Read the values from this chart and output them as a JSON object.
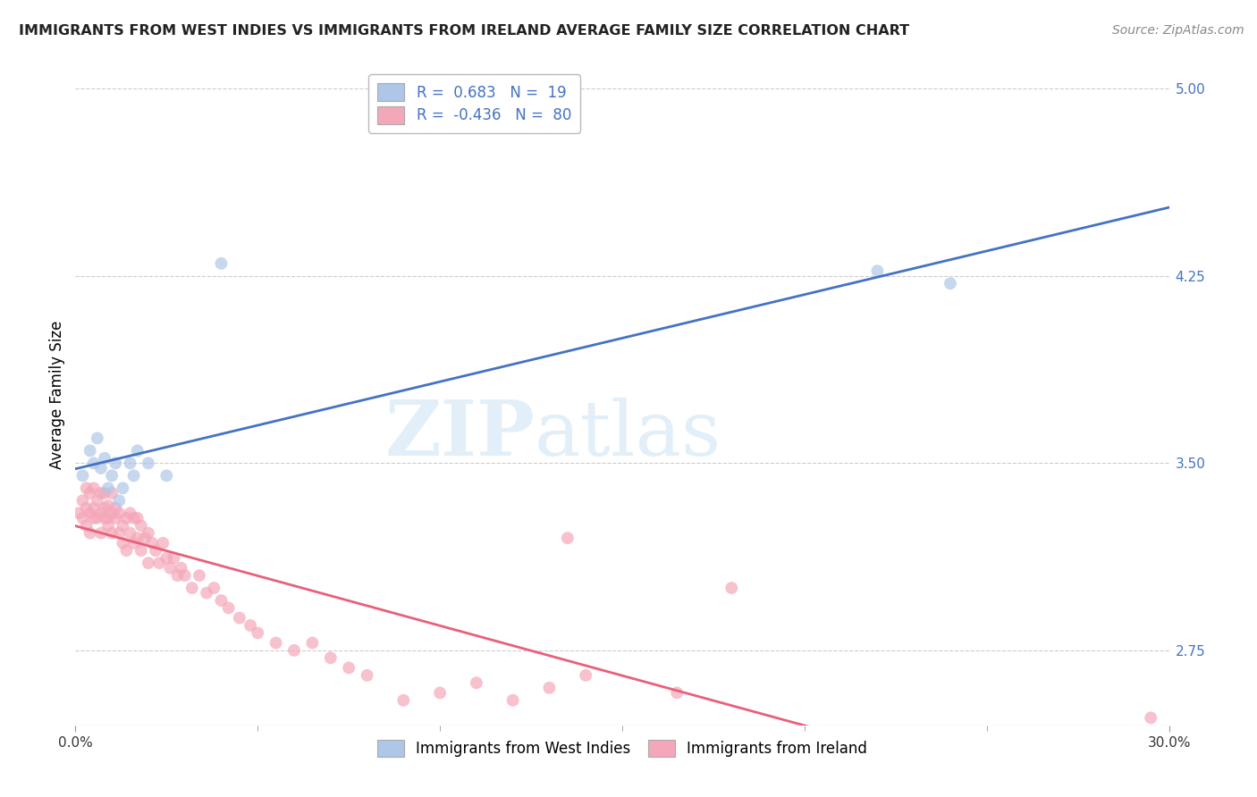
{
  "title": "IMMIGRANTS FROM WEST INDIES VS IMMIGRANTS FROM IRELAND AVERAGE FAMILY SIZE CORRELATION CHART",
  "source": "Source: ZipAtlas.com",
  "ylabel": "Average Family Size",
  "y_ticks": [
    2.75,
    3.5,
    4.25,
    5.0
  ],
  "y_ticks_labels": [
    "2.75",
    "3.50",
    "4.25",
    "5.00"
  ],
  "x_min": 0.0,
  "x_max": 0.3,
  "y_min": 2.45,
  "y_max": 5.1,
  "watermark_left": "ZIP",
  "watermark_right": "atlas",
  "legend_R1": "0.683",
  "legend_N1": "19",
  "legend_R2": "-0.436",
  "legend_N2": "80",
  "series1_name": "Immigrants from West Indies",
  "series2_name": "Immigrants from Ireland",
  "series1_color": "#aec6e8",
  "series2_color": "#f4a7b9",
  "series1_line_color": "#4472c4",
  "series2_line_color": "#e8607a",
  "title_color": "#222222",
  "source_color": "#888888",
  "tick_color_y": "#4472c4",
  "tick_color_x": "#333333",
  "grid_color": "#cccccc",
  "series1_x": [
    0.002,
    0.004,
    0.005,
    0.006,
    0.007,
    0.008,
    0.009,
    0.01,
    0.011,
    0.012,
    0.013,
    0.015,
    0.016,
    0.017,
    0.02,
    0.025,
    0.04,
    0.22,
    0.24
  ],
  "series1_y": [
    3.45,
    3.55,
    3.5,
    3.6,
    3.48,
    3.52,
    3.4,
    3.45,
    3.5,
    3.35,
    3.4,
    3.5,
    3.45,
    3.55,
    3.5,
    3.45,
    4.3,
    4.27,
    4.22
  ],
  "series2_x": [
    0.001,
    0.002,
    0.002,
    0.003,
    0.003,
    0.003,
    0.004,
    0.004,
    0.004,
    0.005,
    0.005,
    0.005,
    0.006,
    0.006,
    0.007,
    0.007,
    0.007,
    0.008,
    0.008,
    0.008,
    0.009,
    0.009,
    0.009,
    0.01,
    0.01,
    0.01,
    0.011,
    0.011,
    0.012,
    0.012,
    0.013,
    0.013,
    0.014,
    0.014,
    0.015,
    0.015,
    0.016,
    0.016,
    0.017,
    0.017,
    0.018,
    0.018,
    0.019,
    0.02,
    0.02,
    0.021,
    0.022,
    0.023,
    0.024,
    0.025,
    0.026,
    0.027,
    0.028,
    0.029,
    0.03,
    0.032,
    0.034,
    0.036,
    0.038,
    0.04,
    0.042,
    0.045,
    0.048,
    0.05,
    0.055,
    0.06,
    0.065,
    0.07,
    0.075,
    0.08,
    0.09,
    0.1,
    0.11,
    0.12,
    0.13,
    0.135,
    0.14,
    0.165,
    0.18,
    0.295
  ],
  "series2_y": [
    3.3,
    3.35,
    3.28,
    3.32,
    3.4,
    3.25,
    3.3,
    3.38,
    3.22,
    3.32,
    3.28,
    3.4,
    3.35,
    3.28,
    3.3,
    3.38,
    3.22,
    3.32,
    3.28,
    3.38,
    3.25,
    3.33,
    3.28,
    3.3,
    3.22,
    3.38,
    3.28,
    3.32,
    3.3,
    3.22,
    3.25,
    3.18,
    3.28,
    3.15,
    3.22,
    3.3,
    3.18,
    3.28,
    3.2,
    3.28,
    3.25,
    3.15,
    3.2,
    3.22,
    3.1,
    3.18,
    3.15,
    3.1,
    3.18,
    3.12,
    3.08,
    3.12,
    3.05,
    3.08,
    3.05,
    3.0,
    3.05,
    2.98,
    3.0,
    2.95,
    2.92,
    2.88,
    2.85,
    2.82,
    2.78,
    2.75,
    2.78,
    2.72,
    2.68,
    2.65,
    2.55,
    2.58,
    2.62,
    2.55,
    2.6,
    3.2,
    2.65,
    2.58,
    3.0,
    2.48
  ],
  "title_fontsize": 11.5,
  "tick_fontsize": 11,
  "label_fontsize": 12,
  "source_fontsize": 10,
  "legend_fontsize": 12,
  "dot_size": 100,
  "dot_alpha": 0.7,
  "line_width": 2.0
}
